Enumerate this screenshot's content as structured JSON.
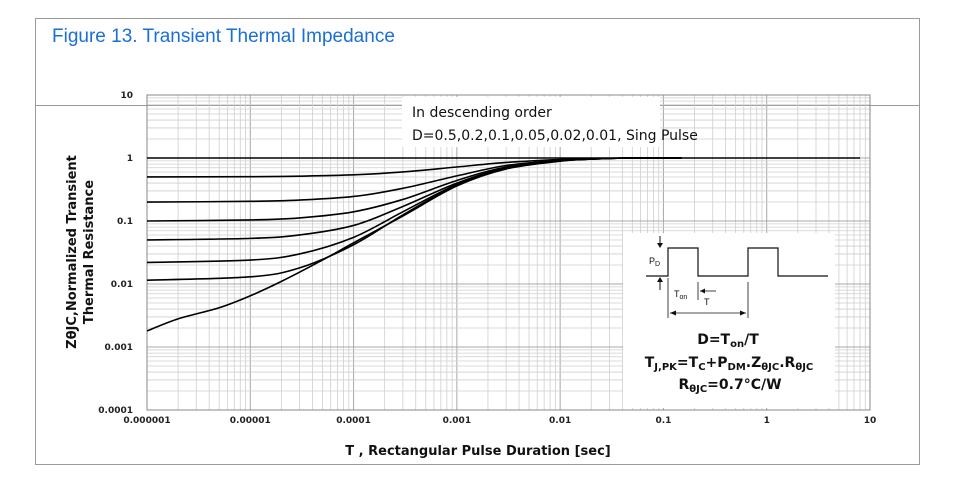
{
  "figure_title": "Figure 13. Transient Thermal Impedance",
  "chart_data": {
    "type": "line",
    "title": "",
    "xlabel": "T , Rectangular Pulse Duration [sec]",
    "ylabel_line1": "ZθJC,Normalized Transient",
    "ylabel_line2": "Thermal Resistance",
    "x_scale": "log",
    "y_scale": "log",
    "xlim": [
      1e-06,
      10
    ],
    "ylim": [
      0.0001,
      10
    ],
    "grid": true,
    "x_ticks": [
      "0.000001",
      "0.00001",
      "0.0001",
      "0.001",
      "0.01",
      "0.1",
      "1",
      "10"
    ],
    "y_ticks": [
      "0.0001",
      "0.001",
      "0.01",
      "0.1",
      "1",
      "10"
    ],
    "legend_line1": "In descending order",
    "legend_line2": "D=0.5,0.2,0.1,0.05,0.02,0.01, Sing Pulse",
    "series": [
      {
        "values": [
          [
            1e-06,
            1.0
          ],
          [
            8,
            1.0
          ]
        ]
      },
      {
        "values": [
          [
            1e-06,
            0.5
          ],
          [
            1e-05,
            0.505
          ],
          [
            3e-05,
            0.515
          ],
          [
            0.0001,
            0.54
          ],
          [
            0.0003,
            0.6
          ],
          [
            0.001,
            0.72
          ],
          [
            0.003,
            0.85
          ],
          [
            0.01,
            0.95
          ],
          [
            0.02,
            0.98
          ],
          [
            0.05,
            1.0
          ],
          [
            0.15,
            1.0
          ]
        ]
      },
      {
        "values": [
          [
            1e-06,
            0.2
          ],
          [
            1e-05,
            0.205
          ],
          [
            3e-05,
            0.215
          ],
          [
            0.0001,
            0.245
          ],
          [
            0.0003,
            0.33
          ],
          [
            0.001,
            0.52
          ],
          [
            0.003,
            0.76
          ],
          [
            0.01,
            0.92
          ],
          [
            0.02,
            0.97
          ],
          [
            0.05,
            1.0
          ],
          [
            0.15,
            1.0
          ]
        ]
      },
      {
        "values": [
          [
            1e-06,
            0.1
          ],
          [
            1e-05,
            0.104
          ],
          [
            3e-05,
            0.112
          ],
          [
            0.0001,
            0.14
          ],
          [
            0.0003,
            0.22
          ],
          [
            0.001,
            0.44
          ],
          [
            0.003,
            0.72
          ],
          [
            0.01,
            0.91
          ],
          [
            0.02,
            0.97
          ],
          [
            0.05,
            1.0
          ],
          [
            0.15,
            1.0
          ]
        ]
      },
      {
        "values": [
          [
            1e-06,
            0.05
          ],
          [
            1e-05,
            0.053
          ],
          [
            3e-05,
            0.06
          ],
          [
            0.0001,
            0.085
          ],
          [
            0.0003,
            0.17
          ],
          [
            0.001,
            0.4
          ],
          [
            0.003,
            0.7
          ],
          [
            0.01,
            0.9
          ],
          [
            0.02,
            0.96
          ],
          [
            0.05,
            1.0
          ],
          [
            0.15,
            1.0
          ]
        ]
      },
      {
        "values": [
          [
            1e-06,
            0.022
          ],
          [
            1e-05,
            0.024
          ],
          [
            3e-05,
            0.03
          ],
          [
            0.0001,
            0.055
          ],
          [
            0.0003,
            0.14
          ],
          [
            0.001,
            0.38
          ],
          [
            0.003,
            0.69
          ],
          [
            0.01,
            0.9
          ],
          [
            0.02,
            0.96
          ],
          [
            0.05,
            1.0
          ],
          [
            0.15,
            1.0
          ]
        ]
      },
      {
        "values": [
          [
            1e-06,
            0.0115
          ],
          [
            1e-05,
            0.013
          ],
          [
            3e-05,
            0.018
          ],
          [
            0.0001,
            0.042
          ],
          [
            0.0003,
            0.125
          ],
          [
            0.001,
            0.37
          ],
          [
            0.003,
            0.68
          ],
          [
            0.01,
            0.9
          ],
          [
            0.02,
            0.96
          ],
          [
            0.05,
            1.0
          ],
          [
            0.15,
            1.0
          ]
        ]
      },
      {
        "values": [
          [
            1e-06,
            0.0018
          ],
          [
            2e-06,
            0.0028
          ],
          [
            5e-06,
            0.0042
          ],
          [
            1e-05,
            0.0065
          ],
          [
            2e-05,
            0.011
          ],
          [
            5e-05,
            0.024
          ],
          [
            0.0001,
            0.045
          ],
          [
            0.0003,
            0.12
          ],
          [
            0.001,
            0.36
          ],
          [
            0.003,
            0.67
          ],
          [
            0.01,
            0.89
          ],
          [
            0.02,
            0.96
          ],
          [
            0.05,
            1.0
          ],
          [
            0.15,
            1.0
          ]
        ]
      }
    ],
    "inset": {
      "label_pd": "P",
      "label_pd_sub": "D",
      "label_ton": "T",
      "label_ton_sub": "on",
      "label_t": "T",
      "formula1": "D=T",
      "formula1_sub": "on",
      "formula1_end": "/T",
      "formula2_a": "T",
      "formula2_a_sub": "J,PK",
      "formula2_b": "=T",
      "formula2_b_sub": "C",
      "formula2_c": "+P",
      "formula2_c_sub": "DM",
      "formula2_d": ".Z",
      "formula2_d_sub": "θJC",
      "formula2_e": ".R",
      "formula2_e_sub": "θJC",
      "formula3_a": "R",
      "formula3_a_sub": "θJC",
      "formula3_b": "=0.7°C/W"
    }
  }
}
